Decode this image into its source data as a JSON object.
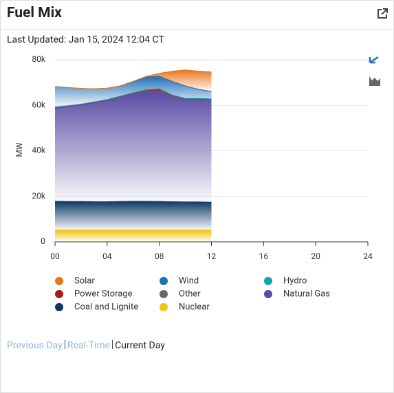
{
  "header": {
    "title": "Fuel Mix",
    "updated": "Last Updated: Jan 15, 2024 12:04 CT"
  },
  "chart_data": {
    "type": "stacked-area",
    "y_label": "MW",
    "x": [
      0,
      1,
      2,
      3,
      4,
      5,
      6,
      7,
      8,
      9,
      10,
      11,
      12
    ],
    "xlim": [
      0,
      24
    ],
    "xticks": [
      {
        "value": 0,
        "label": "00"
      },
      {
        "value": 4,
        "label": "04"
      },
      {
        "value": 8,
        "label": "08"
      },
      12,
      16,
      20,
      24
    ],
    "ylim": [
      0,
      80000
    ],
    "yticks": [
      0,
      {
        "value": 20000,
        "label": "20k"
      },
      {
        "value": 40000,
        "label": "40k"
      },
      {
        "value": 60000,
        "label": "60k"
      },
      {
        "value": 80000,
        "label": "80k"
      }
    ],
    "grid": true,
    "series": [
      {
        "name": "Solar",
        "color": "#e8761f",
        "values": [
          0,
          0,
          0,
          0,
          0,
          0,
          0,
          200,
          1200,
          4500,
          7000,
          8000,
          8500
        ]
      },
      {
        "name": "Wind",
        "color": "#1f6fb5",
        "values": [
          9000,
          8000,
          6900,
          5700,
          5000,
          4500,
          5000,
          5700,
          5600,
          6000,
          5500,
          4000,
          3300
        ]
      },
      {
        "name": "Hydro",
        "color": "#17a2a8",
        "values": [
          100,
          100,
          100,
          100,
          100,
          100,
          100,
          100,
          100,
          100,
          100,
          100,
          100
        ]
      },
      {
        "name": "Power Storage",
        "color": "#a51d17",
        "values": [
          0,
          0,
          0,
          0,
          0,
          0,
          0,
          400,
          800,
          300,
          0,
          0,
          0
        ]
      },
      {
        "name": "Other",
        "color": "#5f6b73",
        "values": [
          300,
          300,
          300,
          300,
          300,
          300,
          300,
          300,
          300,
          300,
          300,
          300,
          300
        ]
      },
      {
        "name": "Natural Gas",
        "color": "#5a4ba3",
        "values": [
          41000,
          41700,
          42400,
          43500,
          44500,
          45900,
          47300,
          48200,
          48300,
          46200,
          45100,
          45100,
          45000
        ]
      },
      {
        "name": "Coal and Lignite",
        "color": "#0c3a65",
        "values": [
          12700,
          12600,
          12600,
          12500,
          12500,
          12600,
          12700,
          12700,
          12600,
          12500,
          12400,
          12400,
          12300
        ]
      },
      {
        "name": "Nuclear",
        "color": "#f2c40f",
        "values": [
          5100,
          5100,
          5100,
          5100,
          5100,
          5100,
          5100,
          5100,
          5100,
          5100,
          5100,
          5100,
          5100
        ]
      }
    ]
  },
  "footer": {
    "links": [
      "Previous Day",
      "Real-Time",
      "Current Day"
    ]
  }
}
